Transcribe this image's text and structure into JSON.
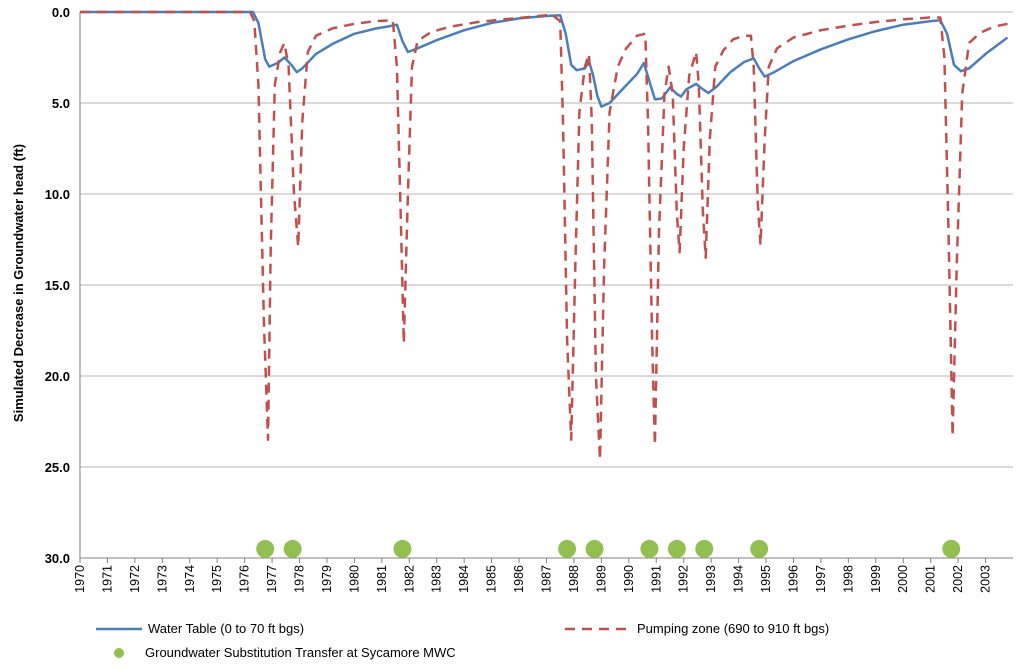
{
  "chart_data": {
    "type": "line",
    "title": "",
    "xlabel": "",
    "ylabel": "Simulated Decrease in Groundwater head (ft)",
    "xlim": [
      1970,
      2004
    ],
    "ylim": [
      0,
      30
    ],
    "y_inverted": true,
    "y_ticks": [
      "0.0",
      "5.0",
      "10.0",
      "15.0",
      "20.0",
      "25.0",
      "30.0"
    ],
    "x_tick_labels": [
      "1970",
      "1971",
      "1972",
      "1973",
      "1974",
      "1975",
      "1976",
      "1977",
      "1978",
      "1979",
      "1980",
      "1981",
      "1982",
      "1983",
      "1984",
      "1985",
      "1986",
      "1987",
      "1988",
      "1989",
      "1990",
      "1991",
      "1992",
      "1993",
      "1994",
      "1995",
      "1996",
      "1997",
      "1998",
      "1999",
      "2000",
      "2001",
      "2002",
      "2003"
    ],
    "grid": "horizontal",
    "legend_position": "bottom",
    "series": [
      {
        "name": "Water Table (0 to 70 ft bgs)",
        "style": "solid",
        "color": "#4a7ebb",
        "points": [
          [
            1970.0,
            0.0
          ],
          [
            1976.3,
            0.0
          ],
          [
            1976.5,
            0.6
          ],
          [
            1976.75,
            2.6
          ],
          [
            1976.9,
            3.0
          ],
          [
            1977.2,
            2.8
          ],
          [
            1977.45,
            2.5
          ],
          [
            1977.7,
            2.9
          ],
          [
            1977.9,
            3.3
          ],
          [
            1978.1,
            3.1
          ],
          [
            1978.6,
            2.3
          ],
          [
            1979.2,
            1.75
          ],
          [
            1980.0,
            1.2
          ],
          [
            1980.8,
            0.9
          ],
          [
            1981.2,
            0.8
          ],
          [
            1981.55,
            0.7
          ],
          [
            1981.75,
            1.6
          ],
          [
            1981.95,
            2.2
          ],
          [
            1982.3,
            2.0
          ],
          [
            1983.0,
            1.55
          ],
          [
            1984.0,
            1.0
          ],
          [
            1985.0,
            0.6
          ],
          [
            1986.0,
            0.35
          ],
          [
            1987.0,
            0.22
          ],
          [
            1987.5,
            0.18
          ],
          [
            1987.7,
            1.2
          ],
          [
            1987.9,
            2.9
          ],
          [
            1988.1,
            3.2
          ],
          [
            1988.4,
            3.1
          ],
          [
            1988.55,
            2.7
          ],
          [
            1988.7,
            3.5
          ],
          [
            1988.85,
            4.6
          ],
          [
            1989.0,
            5.2
          ],
          [
            1989.3,
            5.0
          ],
          [
            1989.8,
            4.2
          ],
          [
            1990.3,
            3.4
          ],
          [
            1990.55,
            2.8
          ],
          [
            1990.75,
            3.8
          ],
          [
            1990.95,
            4.8
          ],
          [
            1991.2,
            4.75
          ],
          [
            1991.5,
            4.15
          ],
          [
            1991.75,
            4.5
          ],
          [
            1991.9,
            4.65
          ],
          [
            1992.1,
            4.25
          ],
          [
            1992.45,
            3.95
          ],
          [
            1992.7,
            4.25
          ],
          [
            1992.9,
            4.45
          ],
          [
            1993.2,
            4.1
          ],
          [
            1993.7,
            3.3
          ],
          [
            1994.2,
            2.75
          ],
          [
            1994.55,
            2.55
          ],
          [
            1994.75,
            3.1
          ],
          [
            1994.95,
            3.55
          ],
          [
            1995.3,
            3.3
          ],
          [
            1996.0,
            2.7
          ],
          [
            1997.0,
            2.05
          ],
          [
            1998.0,
            1.5
          ],
          [
            1999.0,
            1.05
          ],
          [
            2000.0,
            0.7
          ],
          [
            2001.0,
            0.5
          ],
          [
            2001.35,
            0.45
          ],
          [
            2001.6,
            1.2
          ],
          [
            2001.85,
            2.9
          ],
          [
            2002.1,
            3.25
          ],
          [
            2002.4,
            3.1
          ],
          [
            2003.0,
            2.3
          ],
          [
            2003.8,
            1.4
          ]
        ]
      },
      {
        "name": "Pumping zone (690 to 910 ft bgs)",
        "style": "dashed",
        "color": "#c0504d",
        "points": [
          [
            1970.0,
            0.0
          ],
          [
            1976.2,
            0.0
          ],
          [
            1976.35,
            0.5
          ],
          [
            1976.5,
            4.0
          ],
          [
            1976.7,
            17.0
          ],
          [
            1976.85,
            23.5
          ],
          [
            1976.95,
            13.0
          ],
          [
            1977.1,
            4.0
          ],
          [
            1977.3,
            2.2
          ],
          [
            1977.45,
            1.7
          ],
          [
            1977.6,
            3.0
          ],
          [
            1977.8,
            10.0
          ],
          [
            1977.95,
            12.9
          ],
          [
            1978.1,
            6.0
          ],
          [
            1978.3,
            2.2
          ],
          [
            1978.6,
            1.3
          ],
          [
            1979.2,
            0.9
          ],
          [
            1980.0,
            0.65
          ],
          [
            1980.8,
            0.5
          ],
          [
            1981.4,
            0.45
          ],
          [
            1981.55,
            3.0
          ],
          [
            1981.7,
            12.0
          ],
          [
            1981.8,
            18.2
          ],
          [
            1981.95,
            10.0
          ],
          [
            1982.1,
            3.0
          ],
          [
            1982.3,
            1.6
          ],
          [
            1982.8,
            1.1
          ],
          [
            1983.5,
            0.8
          ],
          [
            1984.5,
            0.55
          ],
          [
            1985.5,
            0.4
          ],
          [
            1986.5,
            0.25
          ],
          [
            1987.2,
            0.15
          ],
          [
            1987.5,
            0.5
          ],
          [
            1987.6,
            6.0
          ],
          [
            1987.75,
            18.0
          ],
          [
            1987.9,
            23.5
          ],
          [
            1988.05,
            14.0
          ],
          [
            1988.2,
            5.5
          ],
          [
            1988.4,
            3.0
          ],
          [
            1988.55,
            2.3
          ],
          [
            1988.65,
            6.0
          ],
          [
            1988.8,
            20.0
          ],
          [
            1988.95,
            24.6
          ],
          [
            1989.1,
            14.0
          ],
          [
            1989.3,
            5.5
          ],
          [
            1989.6,
            3.0
          ],
          [
            1989.9,
            2.0
          ],
          [
            1990.3,
            1.3
          ],
          [
            1990.6,
            1.2
          ],
          [
            1990.7,
            6.0
          ],
          [
            1990.85,
            18.0
          ],
          [
            1990.95,
            23.8
          ],
          [
            1991.1,
            12.0
          ],
          [
            1991.3,
            4.5
          ],
          [
            1991.45,
            3.0
          ],
          [
            1991.6,
            4.5
          ],
          [
            1991.75,
            11.0
          ],
          [
            1991.85,
            13.2
          ],
          [
            1992.0,
            7.5
          ],
          [
            1992.2,
            3.5
          ],
          [
            1992.45,
            2.2
          ],
          [
            1992.55,
            4.0
          ],
          [
            1992.7,
            11.0
          ],
          [
            1992.8,
            13.5
          ],
          [
            1992.95,
            7.0
          ],
          [
            1993.15,
            3.0
          ],
          [
            1993.45,
            2.1
          ],
          [
            1993.8,
            1.5
          ],
          [
            1994.2,
            1.3
          ],
          [
            1994.45,
            1.3
          ],
          [
            1994.55,
            3.0
          ],
          [
            1994.7,
            10.5
          ],
          [
            1994.8,
            12.8
          ],
          [
            1994.95,
            7.0
          ],
          [
            1995.1,
            3.0
          ],
          [
            1995.4,
            2.0
          ],
          [
            1996.0,
            1.4
          ],
          [
            1997.0,
            1.0
          ],
          [
            1998.0,
            0.75
          ],
          [
            1999.0,
            0.55
          ],
          [
            2000.0,
            0.4
          ],
          [
            2001.0,
            0.3
          ],
          [
            2001.35,
            0.3
          ],
          [
            2001.5,
            2.5
          ],
          [
            2001.65,
            12.0
          ],
          [
            2001.8,
            23.3
          ],
          [
            2001.95,
            14.0
          ],
          [
            2002.15,
            4.5
          ],
          [
            2002.4,
            1.7
          ],
          [
            2002.8,
            1.15
          ],
          [
            2003.3,
            0.8
          ],
          [
            2003.8,
            0.65
          ]
        ]
      }
    ],
    "transfers": {
      "name": "Groundwater Substitution Transfer at Sycamore MWC",
      "color": "#92c050",
      "y": 29.5,
      "x": [
        1976.75,
        1977.75,
        1981.75,
        1987.75,
        1988.75,
        1990.75,
        1991.75,
        1992.75,
        1994.75,
        2001.75
      ]
    }
  },
  "legend": {
    "water_table": "Water Table (0 to 70 ft bgs)",
    "pumping_zone": "Pumping zone (690 to 910 ft bgs)",
    "transfer": "Groundwater Substitution Transfer at Sycamore MWC"
  }
}
